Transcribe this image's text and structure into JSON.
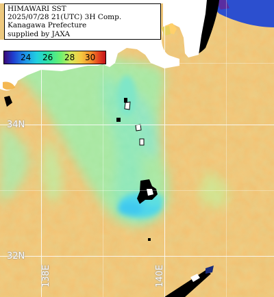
{
  "title_lines": [
    "HIMAWARI SST",
    "2025/07/28 21(UTC) 3H Comp.",
    "Kanagawa Prefecture",
    "supplied by JAXA"
  ],
  "legend": {
    "ticks": [
      "24",
      "26",
      "28",
      "30"
    ],
    "range_celsius": [
      22,
      31
    ],
    "colors": {
      "min": "#3a0a78",
      "cool": "#1f8fe8",
      "mid": "#6cf070",
      "warm": "#f28a2a",
      "max": "#c1141c"
    }
  },
  "grid": {
    "lat_labels": [
      "34N",
      "32N"
    ],
    "lon_labels": [
      "138E",
      "140E"
    ]
  },
  "colors": {
    "land": "#ffffff",
    "missing": "#000000",
    "sea_warm": "#f3c26e",
    "sea_cool": "#9cecb0",
    "sea_cold": "#54d9e6"
  }
}
